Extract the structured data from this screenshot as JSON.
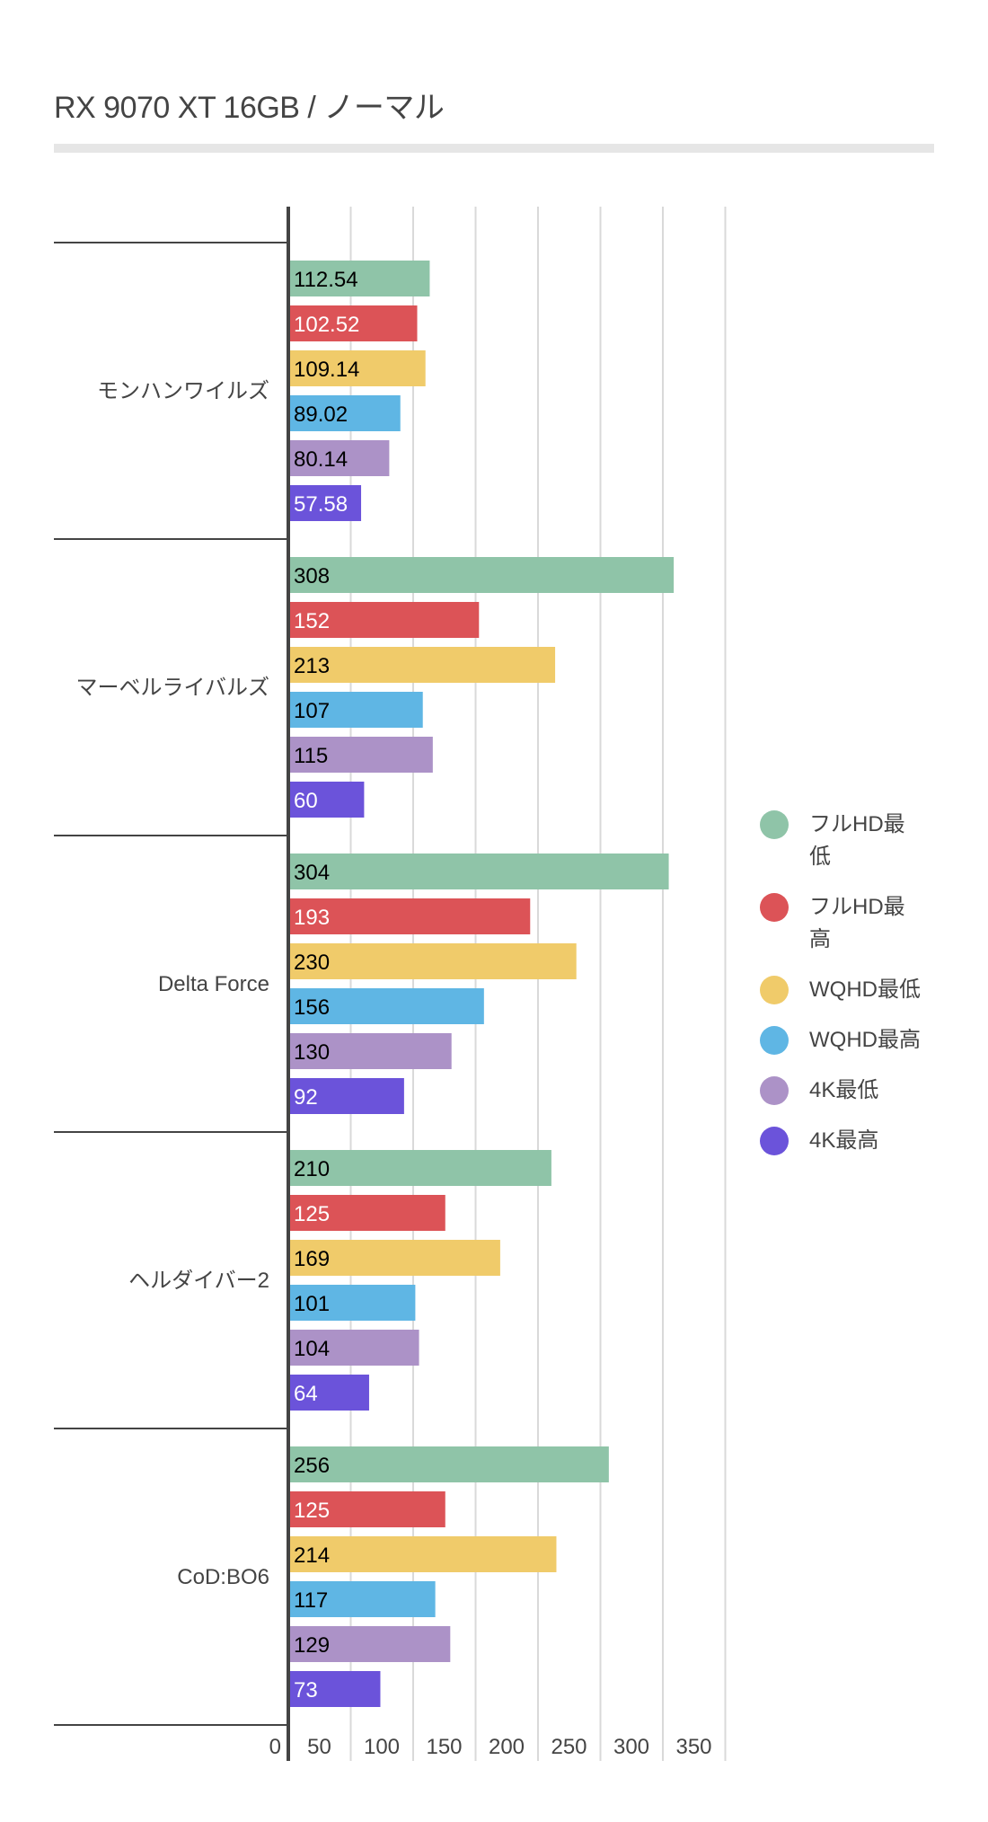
{
  "chart_data": {
    "type": "bar",
    "orientation": "horizontal",
    "title": "RX 9070 XT 16GB  / ノーマル",
    "categories": [
      "モンハンワイルズ",
      "マーベルライバルズ",
      "Delta Force",
      "ヘルダイバー2",
      "CoD:BO6"
    ],
    "series": [
      {
        "name": "フルHD最低",
        "color": "#8fc4a8",
        "values": [
          112.54,
          308,
          304,
          210,
          256
        ],
        "labels": [
          "112.54",
          "308",
          "304",
          "210",
          "256"
        ],
        "label_color": "#000000"
      },
      {
        "name": "フルHD最高",
        "color": "#dc5357",
        "values": [
          102.52,
          152,
          193,
          125,
          125
        ],
        "labels": [
          "102.52",
          "152",
          "193",
          "125",
          "125"
        ],
        "label_color": "#ffffff"
      },
      {
        "name": "WQHD最低",
        "color": "#f0cb6a",
        "values": [
          109.14,
          213,
          230,
          169,
          214
        ],
        "labels": [
          "109.14",
          "213",
          "230",
          "169",
          "214"
        ],
        "label_color": "#000000"
      },
      {
        "name": "WQHD最高",
        "color": "#5fb6e4",
        "values": [
          89.02,
          107,
          156,
          101,
          117
        ],
        "labels": [
          "89.02",
          "107",
          "156",
          "101",
          "117"
        ],
        "label_color": "#000000"
      },
      {
        "name": "4K最低",
        "color": "#ac92c7",
        "values": [
          80.14,
          115,
          130,
          104,
          129
        ],
        "labels": [
          "80.14",
          "115",
          "130",
          "104",
          "129"
        ],
        "label_color": "#000000"
      },
      {
        "name": "4K最高",
        "color": "#6b53da",
        "values": [
          57.58,
          60,
          92,
          64,
          73
        ],
        "labels": [
          "57.58",
          "60",
          "92",
          "64",
          "73"
        ],
        "label_color": "#ffffff"
      }
    ],
    "xlim": [
      0,
      350
    ],
    "xticks": [
      "0",
      "50",
      "100",
      "150",
      "200",
      "250",
      "300",
      "350"
    ],
    "xtick_values": [
      0,
      50,
      100,
      150,
      200,
      250,
      300,
      350
    ],
    "grid": true,
    "legend_position": "right",
    "xlabel": "",
    "ylabel": ""
  }
}
